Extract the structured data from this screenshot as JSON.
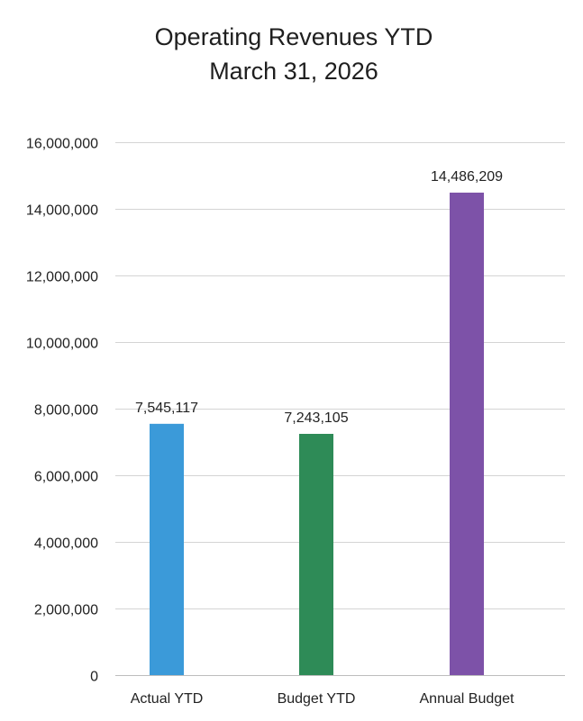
{
  "chart_data": {
    "type": "bar",
    "title_lines": [
      "Operating Revenues YTD",
      "March 31, 2026"
    ],
    "categories": [
      "Actual YTD",
      "Budget YTD",
      "Annual Budget"
    ],
    "values": [
      7545117,
      7243105,
      14486209
    ],
    "data_labels": [
      "7,545,117",
      "7,243,105",
      "14,486,209"
    ],
    "ylim": [
      0,
      16000000
    ],
    "yticks": [
      0,
      2000000,
      4000000,
      6000000,
      8000000,
      10000000,
      12000000,
      14000000,
      16000000
    ],
    "ytick_labels": [
      "0",
      "2,000,000",
      "4,000,000",
      "6,000,000",
      "8,000,000",
      "10,000,000",
      "12,000,000",
      "14,000,000",
      "16,000,000"
    ],
    "colors": [
      "#3b9ad9",
      "#2e8b57",
      "#7d52a8"
    ],
    "grid": true,
    "legend": "none"
  }
}
